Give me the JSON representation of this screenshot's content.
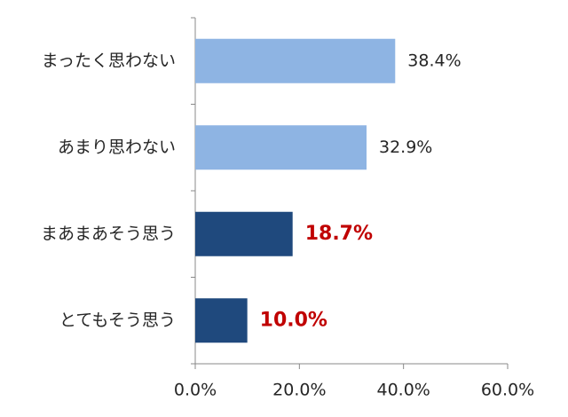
{
  "chart_data": {
    "type": "barh",
    "categories": [
      "まったく思わない",
      "あまり思わない",
      "まあまあそう思う",
      "とてもそう思う"
    ],
    "values": [
      38.4,
      32.9,
      18.7,
      10.0
    ],
    "value_labels": [
      "38.4%",
      "32.9%",
      "18.7%",
      "10.0%"
    ],
    "colors": [
      "#8eb4e3",
      "#8eb4e3",
      "#1f497d",
      "#1f497d"
    ],
    "value_label_colors": [
      "#262626",
      "#262626",
      "#c00000",
      "#c00000"
    ],
    "xlim": [
      0,
      60
    ],
    "xticks": [
      {
        "value": 0,
        "label": "0.0%"
      },
      {
        "value": 20,
        "label": "20.0%"
      },
      {
        "value": 40,
        "label": "40.0%"
      },
      {
        "value": 60,
        "label": "60.0%"
      }
    ]
  }
}
